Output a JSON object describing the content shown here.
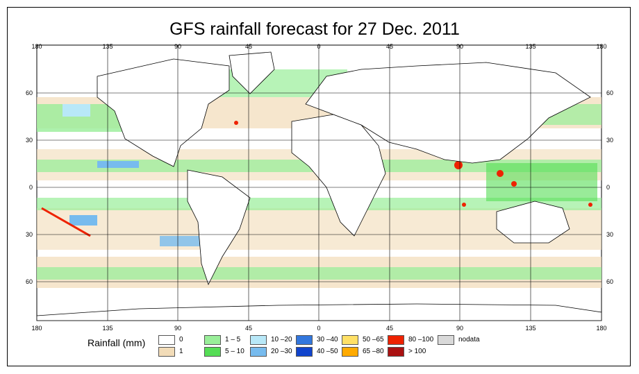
{
  "title": "GFS rainfall forecast for 27 Dec. 2011",
  "axes": {
    "top_lon": [
      "180",
      "135",
      "90",
      "45",
      "0",
      "45",
      "90",
      "135",
      "180"
    ],
    "bottom_lon": [
      "180",
      "135",
      "90",
      "45",
      "0",
      "45",
      "90",
      "135",
      "180"
    ],
    "left_lat": [
      "60",
      "30",
      "0",
      "30",
      "60"
    ],
    "right_lat": [
      "60",
      "30",
      "0",
      "30",
      "60"
    ]
  },
  "legend": {
    "title": "Rainfall (mm)",
    "items": [
      {
        "label": "0",
        "color": "#ffffff"
      },
      {
        "label": "1",
        "color": "#f2dcb8"
      },
      {
        "label": "1 – 5",
        "color": "#99ee99"
      },
      {
        "label": "5 – 10",
        "color": "#55dd55"
      },
      {
        "label": "10 –20",
        "color": "#b8e8f8"
      },
      {
        "label": "20 –30",
        "color": "#77bbee"
      },
      {
        "label": "30 –40",
        "color": "#3377dd"
      },
      {
        "label": "40 –50",
        "color": "#1144cc"
      },
      {
        "label": "50 –65",
        "color": "#ffe066"
      },
      {
        "label": "65 –80",
        "color": "#ffaa00"
      },
      {
        "label": "80 –100",
        "color": "#ee2200"
      },
      {
        "label": "> 100",
        "color": "#aa1111"
      },
      {
        "label": "nodata",
        "color": "#d9d9d9"
      }
    ]
  },
  "colors": {
    "land": "#ffffff",
    "light": "#f2dcb8",
    "green": "#99ee99",
    "green_dark": "#55dd55",
    "blue_light": "#b8e8f8",
    "blue": "#77bbee",
    "red": "#ee2200"
  }
}
